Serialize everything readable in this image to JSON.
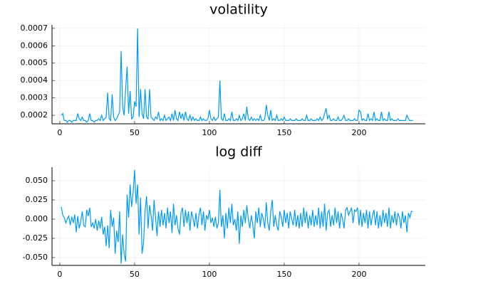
{
  "chart_data": [
    {
      "type": "line",
      "title": "volatility",
      "line_color": "#009af9",
      "grid": true,
      "xlim": [
        -5.2,
        244.3
      ],
      "xticks": [
        0,
        50,
        100,
        150,
        200
      ],
      "ylim": [
        0.000151,
        0.00072
      ],
      "yticks": [
        0.0002,
        0.0003,
        0.0004,
        0.0005,
        0.0006,
        0.0007
      ],
      "x": [
        1,
        2,
        3,
        4,
        5,
        6,
        7,
        8,
        9,
        10,
        11,
        12,
        13,
        14,
        15,
        16,
        17,
        18,
        19,
        20,
        21,
        22,
        23,
        24,
        25,
        26,
        27,
        28,
        29,
        30,
        31,
        32,
        33,
        34,
        35,
        36,
        37,
        38,
        39,
        40,
        41,
        42,
        43,
        44,
        45,
        46,
        47,
        48,
        49,
        50,
        51,
        52,
        53,
        54,
        55,
        56,
        57,
        58,
        59,
        60,
        61,
        62,
        63,
        64,
        65,
        66,
        67,
        68,
        69,
        70,
        71,
        72,
        73,
        74,
        75,
        76,
        77,
        78,
        79,
        80,
        81,
        82,
        83,
        84,
        85,
        86,
        87,
        88,
        89,
        90,
        91,
        92,
        93,
        94,
        95,
        96,
        97,
        98,
        99,
        100,
        101,
        102,
        103,
        104,
        105,
        106,
        107,
        108,
        109,
        110,
        111,
        112,
        113,
        114,
        115,
        116,
        117,
        118,
        119,
        120,
        121,
        122,
        123,
        124,
        125,
        126,
        127,
        128,
        129,
        130,
        131,
        132,
        133,
        134,
        135,
        136,
        137,
        138,
        139,
        140,
        141,
        142,
        143,
        144,
        145,
        146,
        147,
        148,
        149,
        150,
        151,
        152,
        153,
        154,
        155,
        156,
        157,
        158,
        159,
        160,
        161,
        162,
        163,
        164,
        165,
        166,
        167,
        168,
        169,
        170,
        171,
        172,
        173,
        174,
        175,
        176,
        177,
        178,
        179,
        180,
        181,
        182,
        183,
        184,
        185,
        186,
        187,
        188,
        189,
        190,
        191,
        192,
        193,
        194,
        195,
        196,
        197,
        198,
        199,
        200,
        201,
        202,
        203,
        204,
        205,
        206,
        207,
        208,
        209,
        210,
        211,
        212,
        213,
        214,
        215,
        216,
        217,
        218,
        219,
        220,
        221,
        222,
        223,
        224,
        225,
        226,
        227,
        228,
        229,
        230,
        231,
        232,
        233,
        234,
        235,
        236
      ],
      "values": [
        0.0002,
        0.00021,
        0.00017,
        0.00017,
        0.00016,
        0.00017,
        0.00017,
        0.00016,
        0.00017,
        0.00017,
        0.00017,
        0.00021,
        0.00018,
        0.00017,
        0.00019,
        0.00017,
        0.00017,
        0.00016,
        0.00017,
        0.00021,
        0.00017,
        0.00017,
        0.00016,
        0.00017,
        0.00017,
        0.00018,
        0.00017,
        0.0002,
        0.00017,
        0.00018,
        0.00019,
        0.00033,
        0.00018,
        0.00017,
        0.00032,
        0.00019,
        0.00017,
        0.00018,
        0.0002,
        0.00022,
        0.00057,
        0.00025,
        0.0002,
        0.00035,
        0.00048,
        0.00021,
        0.00034,
        0.00018,
        0.00019,
        0.00028,
        0.00025,
        0.0007,
        0.00019,
        0.00035,
        0.00021,
        0.00018,
        0.00035,
        0.00019,
        0.00018,
        0.00035,
        0.00019,
        0.00018,
        0.00017,
        0.00019,
        0.00018,
        0.00022,
        0.00017,
        0.00018,
        0.00017,
        0.0002,
        0.00017,
        0.00018,
        0.00019,
        0.00017,
        0.00021,
        0.00017,
        0.00023,
        0.00018,
        0.00017,
        0.00022,
        0.00018,
        0.00021,
        0.00017,
        0.00022,
        0.00018,
        0.00017,
        0.0002,
        0.00017,
        0.00019,
        0.00017,
        0.00018,
        0.00017,
        0.00017,
        0.00019,
        0.00017,
        0.00018,
        0.00017,
        0.00017,
        0.00018,
        0.00023,
        0.00018,
        0.00017,
        0.00019,
        0.00017,
        0.00018,
        0.00019,
        0.0004,
        0.00018,
        0.00017,
        0.00021,
        0.00017,
        0.00017,
        0.00018,
        0.00017,
        0.00022,
        0.00017,
        0.00017,
        0.00018,
        0.00017,
        0.0002,
        0.00017,
        0.00018,
        0.00021,
        0.00017,
        0.00025,
        0.00018,
        0.00017,
        0.00019,
        0.00017,
        0.00018,
        0.00017,
        0.00018,
        0.00017,
        0.0002,
        0.00017,
        0.00017,
        0.00018,
        0.00026,
        0.0002,
        0.00017,
        0.00023,
        0.00017,
        0.00018,
        0.00017,
        0.0002,
        0.00017,
        0.00017,
        0.00018,
        0.00017,
        0.00019,
        0.00017,
        0.00017,
        0.00017,
        0.00018,
        0.00017,
        0.00017,
        0.00017,
        0.00018,
        0.00017,
        0.00017,
        0.00017,
        0.00018,
        0.00017,
        0.00017,
        0.0002,
        0.00017,
        0.00017,
        0.00018,
        0.00017,
        0.00017,
        0.00017,
        0.00018,
        0.00017,
        0.00019,
        0.00017,
        0.00018,
        0.00021,
        0.00024,
        0.00018,
        0.0002,
        0.00017,
        0.00017,
        0.00018,
        0.00017,
        0.00017,
        0.00019,
        0.00017,
        0.00017,
        0.00018,
        0.0002,
        0.00017,
        0.00017,
        0.00018,
        0.00017,
        0.00017,
        0.00017,
        0.00018,
        0.00017,
        0.00017,
        0.00023,
        0.00022,
        0.00017,
        0.00018,
        0.00017,
        0.00017,
        0.00021,
        0.00017,
        0.00018,
        0.00017,
        0.00022,
        0.00017,
        0.00018,
        0.00017,
        0.00017,
        0.00022,
        0.00017,
        0.00018,
        0.00017,
        0.00017,
        0.00022,
        0.00017,
        0.00018,
        0.00017,
        0.00017,
        0.00017,
        0.00018,
        0.00017,
        0.00017,
        0.00017,
        0.00017,
        0.00017,
        0.0002,
        0.00018,
        0.00017,
        0.00017,
        0.00017
      ]
    },
    {
      "type": "line",
      "title": "log diff",
      "line_color": "#009af9",
      "grid": true,
      "xlim": [
        -5.2,
        244.3
      ],
      "xticks": [
        0,
        50,
        100,
        150,
        200
      ],
      "ylim": [
        -0.0602,
        0.0676
      ],
      "yticks": [
        {
          "value": -0.05,
          "label": "-0.050"
        },
        {
          "value": -0.025,
          "label": "-0.025"
        },
        {
          "value": 0,
          "label": "0.000"
        },
        {
          "value": 0.025,
          "label": "0.025"
        },
        {
          "value": 0.05,
          "label": "0.050"
        }
      ],
      "x": [
        1,
        2,
        3,
        4,
        5,
        6,
        7,
        8,
        9,
        10,
        11,
        12,
        13,
        14,
        15,
        16,
        17,
        18,
        19,
        20,
        21,
        22,
        23,
        24,
        25,
        26,
        27,
        28,
        29,
        30,
        31,
        32,
        33,
        34,
        35,
        36,
        37,
        38,
        39,
        40,
        41,
        42,
        43,
        44,
        45,
        46,
        47,
        48,
        49,
        50,
        51,
        52,
        53,
        54,
        55,
        56,
        57,
        58,
        59,
        60,
        61,
        62,
        63,
        64,
        65,
        66,
        67,
        68,
        69,
        70,
        71,
        72,
        73,
        74,
        75,
        76,
        77,
        78,
        79,
        80,
        81,
        82,
        83,
        84,
        85,
        86,
        87,
        88,
        89,
        90,
        91,
        92,
        93,
        94,
        95,
        96,
        97,
        98,
        99,
        100,
        101,
        102,
        103,
        104,
        105,
        106,
        107,
        108,
        109,
        110,
        111,
        112,
        113,
        114,
        115,
        116,
        117,
        118,
        119,
        120,
        121,
        122,
        123,
        124,
        125,
        126,
        127,
        128,
        129,
        130,
        131,
        132,
        133,
        134,
        135,
        136,
        137,
        138,
        139,
        140,
        141,
        142,
        143,
        144,
        145,
        146,
        147,
        148,
        149,
        150,
        151,
        152,
        153,
        154,
        155,
        156,
        157,
        158,
        159,
        160,
        161,
        162,
        163,
        164,
        165,
        166,
        167,
        168,
        169,
        170,
        171,
        172,
        173,
        174,
        175,
        176,
        177,
        178,
        179,
        180,
        181,
        182,
        183,
        184,
        185,
        186,
        187,
        188,
        189,
        190,
        191,
        192,
        193,
        194,
        195,
        196,
        197,
        198,
        199,
        200,
        201,
        202,
        203,
        204,
        205,
        206,
        207,
        208,
        209,
        210,
        211,
        212,
        213,
        214,
        215,
        216,
        217,
        218,
        219,
        220,
        221,
        222,
        223,
        224,
        225,
        226,
        227,
        228,
        229,
        230,
        231,
        232,
        233,
        234,
        235,
        236
      ],
      "values": [
        0.016,
        0.005,
        0.002,
        -0.005,
        0.0,
        0.004,
        -0.008,
        0.003,
        -0.005,
        0.006,
        -0.017,
        0.004,
        -0.012,
        -0.003,
        0.01,
        -0.008,
        -0.01,
        0.012,
        0.004,
        0.015,
        -0.01,
        -0.005,
        -0.012,
        0.0,
        -0.015,
        -0.002,
        -0.012,
        0.003,
        -0.02,
        -0.01,
        -0.035,
        -0.008,
        -0.038,
        0.012,
        -0.01,
        0.002,
        -0.045,
        -0.015,
        -0.03,
        0.01,
        -0.058,
        -0.02,
        -0.045,
        -0.055,
        0.032,
        0.002,
        0.045,
        0.016,
        0.035,
        0.064,
        0.02,
        0.045,
        -0.02,
        0.028,
        -0.045,
        -0.03,
        0.01,
        0.03,
        -0.012,
        0.018,
        0.005,
        -0.015,
        0.025,
        0.002,
        -0.022,
        0.01,
        -0.01,
        0.012,
        -0.008,
        0.008,
        -0.012,
        0.015,
        -0.005,
        0.01,
        -0.018,
        0.02,
        -0.008,
        0.005,
        -0.012,
        -0.02,
        0.008,
        0.015,
        -0.01,
        0.012,
        -0.005,
        0.01,
        -0.015,
        0.01,
        0.002,
        -0.01,
        0.008,
        -0.012,
        0.005,
        0.015,
        -0.008,
        0.01,
        -0.015,
        0.005,
        0.0,
        0.012,
        -0.005,
        0.002,
        -0.01,
        0.003,
        -0.012,
        -0.005,
        0.038,
        -0.01,
        0.005,
        -0.025,
        0.008,
        -0.012,
        0.015,
        -0.005,
        0.02,
        -0.008,
        0.0,
        -0.015,
        0.01,
        -0.032,
        0.005,
        -0.01,
        0.012,
        -0.005,
        0.018,
        0.0,
        -0.012,
        0.005,
        -0.008,
        -0.025,
        0.01,
        -0.005,
        0.015,
        -0.01,
        0.008,
        0.0,
        -0.012,
        0.022,
        -0.005,
        -0.015,
        0.01,
        0.025,
        -0.01,
        0.005,
        -0.008,
        -0.015,
        0.01,
        0.003,
        -0.01,
        0.012,
        -0.005,
        0.008,
        -0.012,
        0.01,
        0.0,
        -0.008,
        0.012,
        -0.01,
        0.005,
        -0.012,
        0.008,
        -0.01,
        0.015,
        -0.005,
        0.01,
        -0.012,
        0.005,
        -0.008,
        0.012,
        -0.01,
        0.005,
        -0.008,
        0.015,
        -0.012,
        0.01,
        -0.01,
        0.02,
        -0.015,
        0.008,
        0.012,
        -0.01,
        0.005,
        -0.008,
        0.015,
        -0.005,
        0.01,
        -0.012,
        0.008,
        0.0,
        -0.012,
        0.012,
        0.015,
        0.005,
        0.01,
        0.015,
        -0.005,
        0.012,
        0.01,
        0.015,
        -0.008,
        0.012,
        -0.01,
        0.008,
        -0.005,
        0.012,
        -0.012,
        0.01,
        -0.008,
        0.005,
        0.012,
        -0.008,
        0.01,
        -0.012,
        0.005,
        -0.01,
        0.012,
        -0.005,
        0.008,
        -0.01,
        0.015,
        -0.012,
        0.005,
        -0.005,
        0.01,
        -0.008,
        0.008,
        0.002,
        -0.012,
        0.01,
        -0.005,
        0.005,
        -0.017,
        0.008,
        0.002,
        0.01,
        0.01
      ]
    }
  ]
}
